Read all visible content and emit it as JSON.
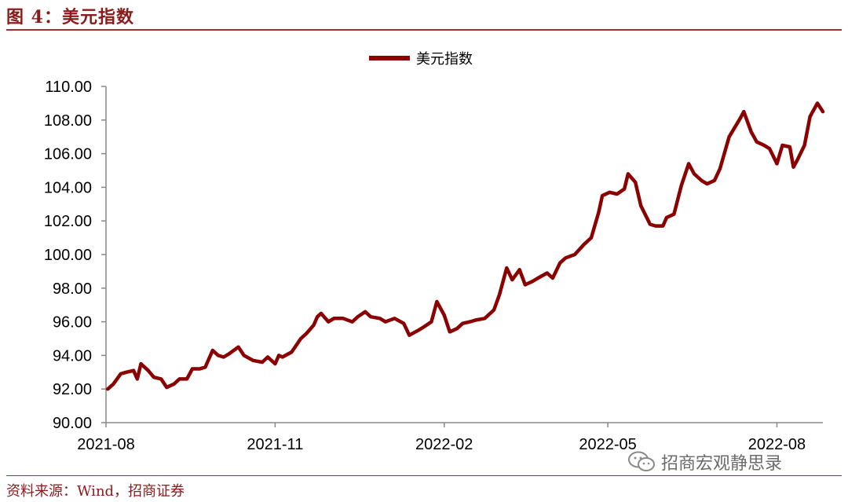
{
  "figure": {
    "title": "图 4：美元指数",
    "source": "资料来源：Wind，招商证券",
    "watermark": "招商宏观静思录"
  },
  "colors": {
    "accent": "#8b0000",
    "rule": "#a0332d",
    "title": "#8b1a1a"
  },
  "chart_data": {
    "type": "line",
    "title": "",
    "xlabel": "",
    "ylabel": "",
    "ylim": [
      90,
      110
    ],
    "yticks": [
      "90.00",
      "92.00",
      "94.00",
      "96.00",
      "98.00",
      "100.00",
      "102.00",
      "104.00",
      "106.00",
      "108.00",
      "110.00"
    ],
    "xticks": [
      "2021-08",
      "2021-11",
      "2022-02",
      "2022-05",
      "2022-08"
    ],
    "xtick_dates": [
      "2021-08-01",
      "2021-11-01",
      "2022-02-01",
      "2022-05-01",
      "2022-08-01"
    ],
    "xrange": [
      "2021-08-01",
      "2022-08-26"
    ],
    "grid": false,
    "legend": "top-center",
    "series": [
      {
        "name": "美元指数",
        "color": "#8b0000",
        "points": [
          [
            "2021-08-02",
            92.0
          ],
          [
            "2021-08-05",
            92.3
          ],
          [
            "2021-08-09",
            92.9
          ],
          [
            "2021-08-12",
            93.0
          ],
          [
            "2021-08-16",
            93.1
          ],
          [
            "2021-08-18",
            92.6
          ],
          [
            "2021-08-20",
            93.5
          ],
          [
            "2021-08-24",
            93.1
          ],
          [
            "2021-08-27",
            92.7
          ],
          [
            "2021-08-31",
            92.6
          ],
          [
            "2021-09-03",
            92.1
          ],
          [
            "2021-09-07",
            92.3
          ],
          [
            "2021-09-10",
            92.6
          ],
          [
            "2021-09-14",
            92.6
          ],
          [
            "2021-09-17",
            93.2
          ],
          [
            "2021-09-21",
            93.2
          ],
          [
            "2021-09-24",
            93.3
          ],
          [
            "2021-09-28",
            94.3
          ],
          [
            "2021-10-01",
            94.0
          ],
          [
            "2021-10-04",
            93.9
          ],
          [
            "2021-10-07",
            94.1
          ],
          [
            "2021-10-12",
            94.5
          ],
          [
            "2021-10-15",
            94.0
          ],
          [
            "2021-10-20",
            93.7
          ],
          [
            "2021-10-25",
            93.6
          ],
          [
            "2021-10-28",
            93.9
          ],
          [
            "2021-11-01",
            93.5
          ],
          [
            "2021-11-03",
            94.0
          ],
          [
            "2021-11-05",
            93.9
          ],
          [
            "2021-11-10",
            94.2
          ],
          [
            "2021-11-15",
            95.0
          ],
          [
            "2021-11-18",
            95.3
          ],
          [
            "2021-11-22",
            95.8
          ],
          [
            "2021-11-24",
            96.3
          ],
          [
            "2021-11-26",
            96.5
          ],
          [
            "2021-11-30",
            96.0
          ],
          [
            "2021-12-03",
            96.2
          ],
          [
            "2021-12-08",
            96.2
          ],
          [
            "2021-12-13",
            96.0
          ],
          [
            "2021-12-16",
            96.3
          ],
          [
            "2021-12-20",
            96.6
          ],
          [
            "2021-12-23",
            96.3
          ],
          [
            "2021-12-28",
            96.2
          ],
          [
            "2021-12-31",
            96.0
          ],
          [
            "2022-01-05",
            96.2
          ],
          [
            "2022-01-10",
            95.9
          ],
          [
            "2022-01-13",
            95.2
          ],
          [
            "2022-01-18",
            95.5
          ],
          [
            "2022-01-21",
            95.7
          ],
          [
            "2022-01-25",
            96.0
          ],
          [
            "2022-01-28",
            97.2
          ],
          [
            "2022-02-01",
            96.4
          ],
          [
            "2022-02-04",
            95.4
          ],
          [
            "2022-02-08",
            95.6
          ],
          [
            "2022-02-11",
            95.9
          ],
          [
            "2022-02-15",
            96.0
          ],
          [
            "2022-02-18",
            96.1
          ],
          [
            "2022-02-23",
            96.2
          ],
          [
            "2022-02-28",
            96.7
          ],
          [
            "2022-03-03",
            97.6
          ],
          [
            "2022-03-07",
            99.2
          ],
          [
            "2022-03-10",
            98.5
          ],
          [
            "2022-03-14",
            99.1
          ],
          [
            "2022-03-17",
            98.2
          ],
          [
            "2022-03-21",
            98.4
          ],
          [
            "2022-03-24",
            98.6
          ],
          [
            "2022-03-29",
            98.9
          ],
          [
            "2022-04-01",
            98.6
          ],
          [
            "2022-04-05",
            99.5
          ],
          [
            "2022-04-08",
            99.8
          ],
          [
            "2022-04-13",
            100.0
          ],
          [
            "2022-04-18",
            100.6
          ],
          [
            "2022-04-22",
            101.0
          ],
          [
            "2022-04-26",
            102.5
          ],
          [
            "2022-04-28",
            103.5
          ],
          [
            "2022-05-02",
            103.7
          ],
          [
            "2022-05-06",
            103.6
          ],
          [
            "2022-05-10",
            103.9
          ],
          [
            "2022-05-12",
            104.8
          ],
          [
            "2022-05-16",
            104.3
          ],
          [
            "2022-05-19",
            102.9
          ],
          [
            "2022-05-24",
            101.8
          ],
          [
            "2022-05-27",
            101.7
          ],
          [
            "2022-05-31",
            101.7
          ],
          [
            "2022-06-02",
            102.2
          ],
          [
            "2022-06-06",
            102.4
          ],
          [
            "2022-06-10",
            104.1
          ],
          [
            "2022-06-14",
            105.4
          ],
          [
            "2022-06-17",
            104.8
          ],
          [
            "2022-06-21",
            104.4
          ],
          [
            "2022-06-24",
            104.2
          ],
          [
            "2022-06-28",
            104.4
          ],
          [
            "2022-07-01",
            105.1
          ],
          [
            "2022-07-06",
            107.0
          ],
          [
            "2022-07-12",
            108.1
          ],
          [
            "2022-07-14",
            108.5
          ],
          [
            "2022-07-18",
            107.3
          ],
          [
            "2022-07-21",
            106.7
          ],
          [
            "2022-07-25",
            106.5
          ],
          [
            "2022-07-28",
            106.3
          ],
          [
            "2022-08-01",
            105.4
          ],
          [
            "2022-08-04",
            106.5
          ],
          [
            "2022-08-08",
            106.4
          ],
          [
            "2022-08-10",
            105.2
          ],
          [
            "2022-08-12",
            105.6
          ],
          [
            "2022-08-16",
            106.5
          ],
          [
            "2022-08-19",
            108.2
          ],
          [
            "2022-08-23",
            109.0
          ],
          [
            "2022-08-26",
            108.5
          ]
        ]
      }
    ]
  }
}
